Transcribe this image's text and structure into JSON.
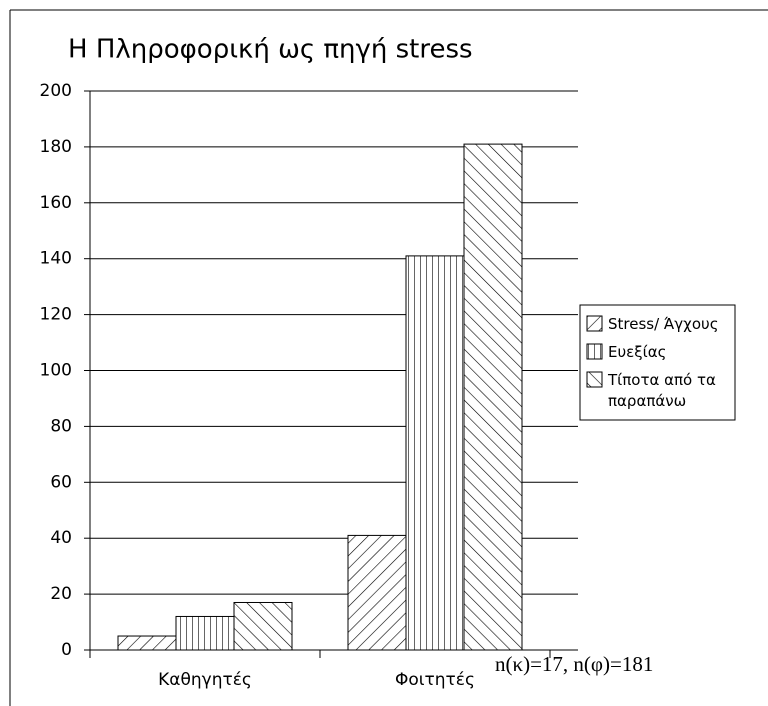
{
  "chart_data": {
    "type": "bar",
    "title": "Η Πληροφορική ως πηγή stress",
    "categories": [
      "Καθηγητές",
      "Φοιτητές"
    ],
    "series": [
      {
        "name": "Stress/ Άγχους",
        "color": "#000000",
        "pattern": "diagonal-up",
        "values": [
          5,
          41
        ]
      },
      {
        "name": "Ευεξίας",
        "color": "#000000",
        "pattern": "vertical",
        "values": [
          12,
          141
        ]
      },
      {
        "name": "Τίποτα από τα παραπάνω",
        "color": "#000000",
        "pattern": "diagonal-down",
        "values": [
          17,
          181
        ]
      }
    ],
    "ylim": [
      0,
      200
    ],
    "yticks": [
      0,
      20,
      40,
      60,
      80,
      100,
      120,
      140,
      160,
      180,
      200
    ],
    "grid": true,
    "legend": "right",
    "annotation": "n(κ)=17, n(φ)=181"
  }
}
